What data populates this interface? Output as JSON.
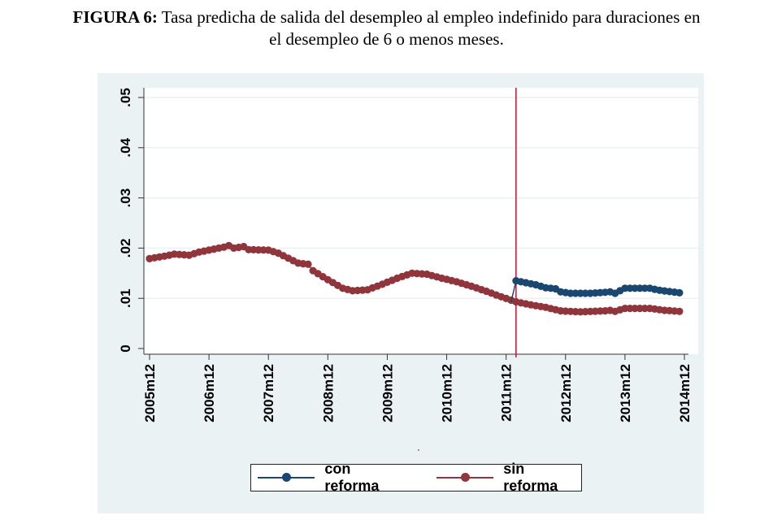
{
  "caption": {
    "label": "FIGURA 6:",
    "text_line1": " Tasa predicha de salida del desempleo al empleo indefinido para duraciones en",
    "text_line2": "el desempleo de 6 o menos meses."
  },
  "colors": {
    "panel_bg": "#eaf2f3",
    "plot_bg": "#ffffff",
    "grid": "#eaf2f3",
    "con_reforma": "#1a476f",
    "sin_reforma": "#90353b",
    "reform_line": "#c8102e"
  },
  "chart_data": {
    "type": "line",
    "title": "Tasa predicha de salida del desempleo al empleo indefinido para duraciones en el desempleo de 6 o menos meses.",
    "xlabel": "",
    "ylabel": "",
    "x_unit": "month",
    "x_start": "2005m12",
    "x_end": "2014m11",
    "xticks": [
      "2005m12",
      "2006m12",
      "2007m12",
      "2008m12",
      "2009m12",
      "2010m12",
      "2011m12",
      "2012m12",
      "2013m12",
      "2014m12"
    ],
    "yticks": [
      "0",
      ".01",
      ".02",
      ".03",
      ".04",
      ".05"
    ],
    "ylim": [
      0,
      0.05
    ],
    "grid": true,
    "legend_position": "bottom",
    "vertical_line": {
      "x": "2012m2",
      "label": ""
    },
    "series": [
      {
        "name": "con reforma",
        "marker": "circle",
        "keyframes": [
          [
            "2012m1",
            0.0093
          ],
          [
            "2012m2",
            0.0135
          ],
          [
            "2012m4",
            0.0131
          ],
          [
            "2012m6",
            0.0127
          ],
          [
            "2012m8",
            0.0121
          ],
          [
            "2012m10",
            0.0119
          ],
          [
            "2012m11",
            0.0113
          ],
          [
            "2013m1",
            0.011
          ],
          [
            "2013m5",
            0.011
          ],
          [
            "2013m8",
            0.0112
          ],
          [
            "2013m9",
            0.0113
          ],
          [
            "2013m10",
            0.011
          ],
          [
            "2013m12",
            0.012
          ],
          [
            "2014m5",
            0.012
          ],
          [
            "2014m7",
            0.0116
          ],
          [
            "2014m11",
            0.0111
          ]
        ]
      },
      {
        "name": "sin reforma",
        "marker": "circle",
        "keyframes": [
          [
            "2005m12",
            0.0179
          ],
          [
            "2006m3",
            0.0184
          ],
          [
            "2006m5",
            0.0188
          ],
          [
            "2006m8",
            0.0186
          ],
          [
            "2006m10",
            0.0192
          ],
          [
            "2006m12",
            0.0196
          ],
          [
            "2007m3",
            0.0202
          ],
          [
            "2007m4",
            0.0205
          ],
          [
            "2007m5",
            0.02
          ],
          [
            "2007m7",
            0.0203
          ],
          [
            "2007m8",
            0.0197
          ],
          [
            "2007m12",
            0.0196
          ],
          [
            "2008m2",
            0.019
          ],
          [
            "2008m4",
            0.018
          ],
          [
            "2008m6",
            0.017
          ],
          [
            "2008m8",
            0.0168
          ],
          [
            "2008m9",
            0.0155
          ],
          [
            "2008m12",
            0.0137
          ],
          [
            "2009m3",
            0.012
          ],
          [
            "2009m5",
            0.0115
          ],
          [
            "2009m8",
            0.0117
          ],
          [
            "2009m11",
            0.0128
          ],
          [
            "2010m2",
            0.014
          ],
          [
            "2010m5",
            0.015
          ],
          [
            "2010m8",
            0.0148
          ],
          [
            "2010m11",
            0.014
          ],
          [
            "2011m2",
            0.0133
          ],
          [
            "2011m5",
            0.0124
          ],
          [
            "2011m8",
            0.0114
          ],
          [
            "2011m11",
            0.0103
          ],
          [
            "2012m2",
            0.0093
          ],
          [
            "2012m5",
            0.0087
          ],
          [
            "2012m8",
            0.0082
          ],
          [
            "2012m11",
            0.0075
          ],
          [
            "2013m3",
            0.0073
          ],
          [
            "2013m8",
            0.0075
          ],
          [
            "2013m9",
            0.0076
          ],
          [
            "2013m10",
            0.0074
          ],
          [
            "2013m12",
            0.008
          ],
          [
            "2014m5",
            0.008
          ],
          [
            "2014m8",
            0.0076
          ],
          [
            "2014m11",
            0.0074
          ]
        ]
      }
    ]
  },
  "legend": {
    "items": [
      {
        "label": "con reforma",
        "series": "con_reforma"
      },
      {
        "label": "sin reforma",
        "series": "sin_reforma"
      }
    ]
  }
}
